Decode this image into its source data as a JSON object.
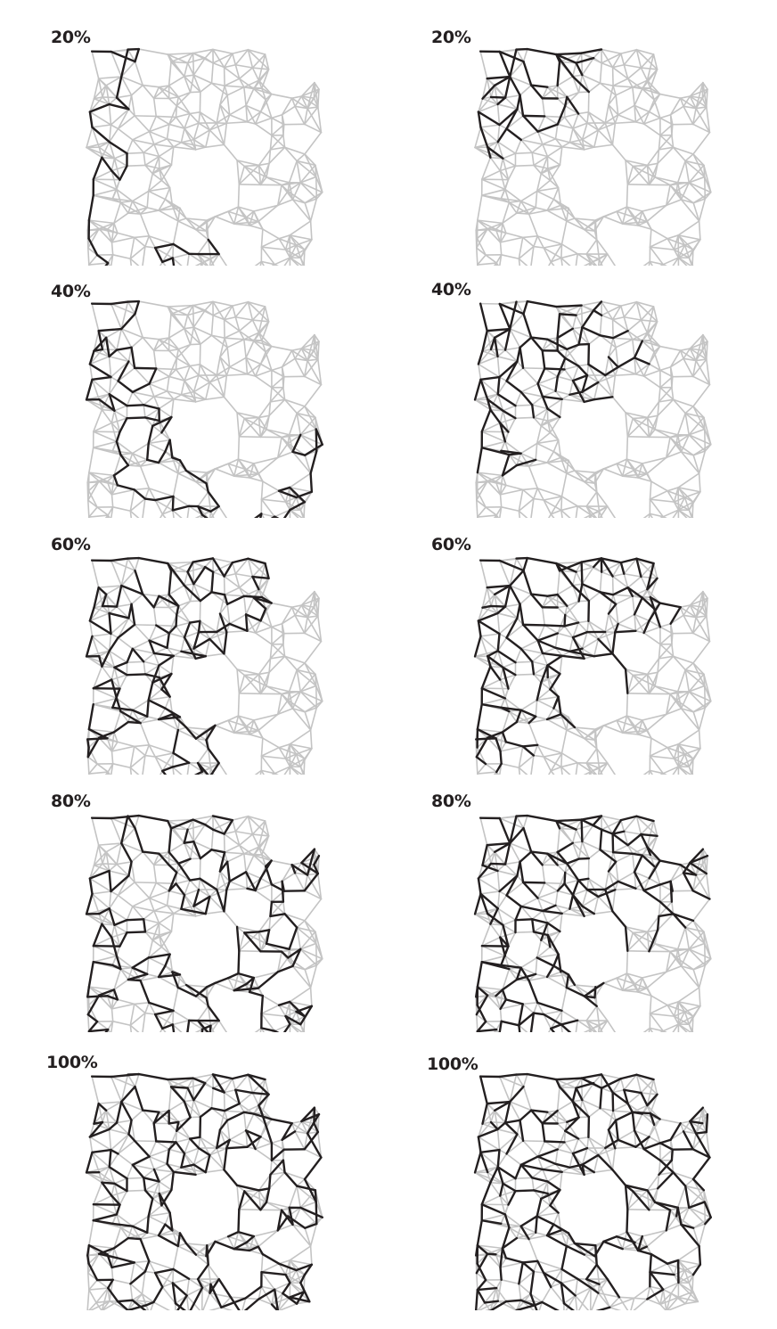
{
  "figure": {
    "columns": [
      "left",
      "right"
    ],
    "panels": [
      {
        "id": "l1",
        "column": "left",
        "label": "20%",
        "fraction": 0.2,
        "seed": 11
      },
      {
        "id": "r1",
        "column": "right",
        "label": "20%",
        "fraction": 0.2,
        "seed": 12
      },
      {
        "id": "l2",
        "column": "left",
        "label": "40%",
        "fraction": 0.4,
        "seed": 21
      },
      {
        "id": "r2",
        "column": "right",
        "label": "40%",
        "fraction": 0.4,
        "seed": 22
      },
      {
        "id": "l3",
        "column": "left",
        "label": "60%",
        "fraction": 0.6,
        "seed": 31
      },
      {
        "id": "r3",
        "column": "right",
        "label": "60%",
        "fraction": 0.6,
        "seed": 32
      },
      {
        "id": "l4",
        "column": "left",
        "label": "80%",
        "fraction": 0.8,
        "seed": 41
      },
      {
        "id": "r4",
        "column": "right",
        "label": "80%",
        "fraction": 0.8,
        "seed": 42
      },
      {
        "id": "l5",
        "column": "left",
        "label": "100%",
        "fraction": 1.0,
        "seed": 51
      },
      {
        "id": "r5",
        "column": "right",
        "label": "100%",
        "fraction": 1.0,
        "seed": 52
      }
    ],
    "colors": {
      "network_edge": "#c4c4c4",
      "highlight_edge": "#231f20",
      "label": "#231f20"
    }
  }
}
